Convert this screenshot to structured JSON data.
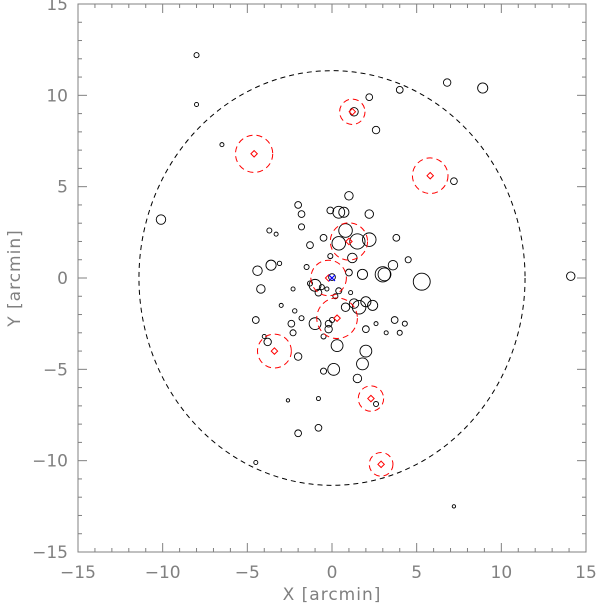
{
  "chart_data": {
    "type": "scatter",
    "xlabel": "X [arcmin]",
    "ylabel": "Y [arcmin]",
    "xlim": [
      -15,
      15
    ],
    "ylim": [
      -15,
      15
    ],
    "xticks_major": [
      -15,
      -10,
      -5,
      0,
      5,
      10,
      15
    ],
    "yticks_major": [
      -15,
      -10,
      -5,
      0,
      5,
      10,
      15
    ],
    "minor_tick_step": 1,
    "grid": false,
    "colors": {
      "frame": "#808080",
      "sources": "#000000",
      "highlight": "#ff0000",
      "center": "#0000ff"
    },
    "boundary_ellipse": {
      "center": [
        0,
        0
      ],
      "semi_x": 11.4,
      "semi_y": 11.35,
      "style": "dashed",
      "color": "#000000"
    },
    "sources": [
      {
        "x": -8.0,
        "y": 12.2,
        "r": 0.15
      },
      {
        "x": -8.0,
        "y": 9.5,
        "r": 0.12
      },
      {
        "x": -6.5,
        "y": 7.3,
        "r": 0.12
      },
      {
        "x": 6.8,
        "y": 10.7,
        "r": 0.22
      },
      {
        "x": 8.9,
        "y": 10.4,
        "r": 0.3
      },
      {
        "x": 4.0,
        "y": 10.3,
        "r": 0.2
      },
      {
        "x": 2.2,
        "y": 9.9,
        "r": 0.2
      },
      {
        "x": 1.3,
        "y": 9.1,
        "r": 0.25
      },
      {
        "x": 2.6,
        "y": 8.1,
        "r": 0.22
      },
      {
        "x": -10.1,
        "y": 3.2,
        "r": 0.28
      },
      {
        "x": 14.1,
        "y": 0.1,
        "r": 0.25
      },
      {
        "x": 7.2,
        "y": 5.3,
        "r": 0.2
      },
      {
        "x": 1.0,
        "y": 4.5,
        "r": 0.25
      },
      {
        "x": 0.4,
        "y": 3.6,
        "r": 0.35
      },
      {
        "x": 0.7,
        "y": 3.6,
        "r": 0.3
      },
      {
        "x": -0.1,
        "y": 3.7,
        "r": 0.2
      },
      {
        "x": 2.2,
        "y": 3.5,
        "r": 0.25
      },
      {
        "x": -2.0,
        "y": 4.0,
        "r": 0.2
      },
      {
        "x": -1.8,
        "y": 3.5,
        "r": 0.2
      },
      {
        "x": -1.8,
        "y": 2.8,
        "r": 0.18
      },
      {
        "x": 0.8,
        "y": 2.6,
        "r": 0.4
      },
      {
        "x": -0.5,
        "y": 2.2,
        "r": 0.2
      },
      {
        "x": 0.4,
        "y": 1.9,
        "r": 0.4
      },
      {
        "x": 1.5,
        "y": 2.0,
        "r": 0.45
      },
      {
        "x": 2.2,
        "y": 2.1,
        "r": 0.4
      },
      {
        "x": 3.8,
        "y": 2.2,
        "r": 0.2
      },
      {
        "x": -3.7,
        "y": 2.6,
        "r": 0.15
      },
      {
        "x": -3.3,
        "y": 2.4,
        "r": 0.12
      },
      {
        "x": -1.3,
        "y": 1.8,
        "r": 0.2
      },
      {
        "x": -3.6,
        "y": 0.7,
        "r": 0.3
      },
      {
        "x": -4.4,
        "y": 0.4,
        "r": 0.28
      },
      {
        "x": -3.1,
        "y": 0.8,
        "r": 0.13
      },
      {
        "x": -1.5,
        "y": 0.6,
        "r": 0.15
      },
      {
        "x": -0.1,
        "y": 1.2,
        "r": 0.15
      },
      {
        "x": 1.2,
        "y": 1.1,
        "r": 0.28
      },
      {
        "x": 1.8,
        "y": 0.2,
        "r": 0.3
      },
      {
        "x": 3.0,
        "y": 0.2,
        "r": 0.45
      },
      {
        "x": 3.1,
        "y": 0.2,
        "r": 0.38
      },
      {
        "x": 3.6,
        "y": 0.7,
        "r": 0.28
      },
      {
        "x": 4.5,
        "y": 1.0,
        "r": 0.18
      },
      {
        "x": 5.3,
        "y": -0.2,
        "r": 0.5
      },
      {
        "x": 1.0,
        "y": 0.3,
        "r": 0.2
      },
      {
        "x": -4.2,
        "y": -0.6,
        "r": 0.25
      },
      {
        "x": -2.3,
        "y": -0.6,
        "r": 0.12
      },
      {
        "x": -1.3,
        "y": -0.3,
        "r": 0.15
      },
      {
        "x": -1.0,
        "y": -0.4,
        "r": 0.35
      },
      {
        "x": -0.6,
        "y": -0.5,
        "r": 0.15
      },
      {
        "x": -0.3,
        "y": -0.6,
        "r": 0.12
      },
      {
        "x": -0.8,
        "y": -0.8,
        "r": 0.2
      },
      {
        "x": 0.4,
        "y": -0.7,
        "r": 0.18
      },
      {
        "x": 0.2,
        "y": -1.0,
        "r": 0.15
      },
      {
        "x": 1.1,
        "y": -0.8,
        "r": 0.12
      },
      {
        "x": 0.8,
        "y": -1.6,
        "r": 0.25
      },
      {
        "x": 1.3,
        "y": -1.4,
        "r": 0.28
      },
      {
        "x": 1.6,
        "y": -1.6,
        "r": 0.4
      },
      {
        "x": 2.0,
        "y": -1.3,
        "r": 0.3
      },
      {
        "x": 2.4,
        "y": -1.5,
        "r": 0.3
      },
      {
        "x": -3.0,
        "y": -1.5,
        "r": 0.12
      },
      {
        "x": -2.2,
        "y": -1.8,
        "r": 0.13
      },
      {
        "x": -1.8,
        "y": -2.2,
        "r": 0.15
      },
      {
        "x": -0.2,
        "y": -2.5,
        "r": 0.2
      },
      {
        "x": 0.0,
        "y": -2.3,
        "r": 0.15
      },
      {
        "x": -4.5,
        "y": -2.3,
        "r": 0.2
      },
      {
        "x": -2.4,
        "y": -2.5,
        "r": 0.2
      },
      {
        "x": -1.0,
        "y": -2.5,
        "r": 0.35
      },
      {
        "x": 2.6,
        "y": -2.5,
        "r": 0.12
      },
      {
        "x": 3.7,
        "y": -2.3,
        "r": 0.2
      },
      {
        "x": 4.3,
        "y": -2.5,
        "r": 0.15
      },
      {
        "x": -0.2,
        "y": -2.8,
        "r": 0.22
      },
      {
        "x": 2.0,
        "y": -2.8,
        "r": 0.2
      },
      {
        "x": -4.0,
        "y": -3.2,
        "r": 0.12
      },
      {
        "x": -2.3,
        "y": -3.0,
        "r": 0.18
      },
      {
        "x": -0.5,
        "y": -3.2,
        "r": 0.15
      },
      {
        "x": 0.3,
        "y": -3.7,
        "r": 0.35
      },
      {
        "x": 3.2,
        "y": -3.0,
        "r": 0.12
      },
      {
        "x": 4.0,
        "y": -3.0,
        "r": 0.15
      },
      {
        "x": -3.8,
        "y": -3.5,
        "r": 0.22
      },
      {
        "x": -2.0,
        "y": -4.3,
        "r": 0.22
      },
      {
        "x": 2.0,
        "y": -4.0,
        "r": 0.35
      },
      {
        "x": 1.8,
        "y": -4.7,
        "r": 0.35
      },
      {
        "x": 0.1,
        "y": -5.0,
        "r": 0.35
      },
      {
        "x": -0.5,
        "y": -5.1,
        "r": 0.18
      },
      {
        "x": 1.5,
        "y": -5.5,
        "r": 0.25
      },
      {
        "x": -2.6,
        "y": -6.7,
        "r": 0.1
      },
      {
        "x": -0.8,
        "y": -6.6,
        "r": 0.12
      },
      {
        "x": 2.6,
        "y": -6.9,
        "r": 0.15
      },
      {
        "x": -0.8,
        "y": -8.2,
        "r": 0.2
      },
      {
        "x": -2.0,
        "y": -8.5,
        "r": 0.2
      },
      {
        "x": 0.0,
        "y": 0.05,
        "r": 0.2
      },
      {
        "x": -4.5,
        "y": -10.1,
        "r": 0.12
      },
      {
        "x": 7.2,
        "y": -12.5,
        "r": 0.1
      }
    ],
    "highlighted": [
      {
        "x": 1.2,
        "y": 9.1,
        "r": 0.75
      },
      {
        "x": -4.6,
        "y": 6.8,
        "r": 1.1
      },
      {
        "x": 5.8,
        "y": 5.6,
        "r": 1.05
      },
      {
        "x": -0.2,
        "y": 0.0,
        "r": 1.05
      },
      {
        "x": 1.0,
        "y": 2.0,
        "r": 1.1
      },
      {
        "x": 0.3,
        "y": -2.2,
        "r": 1.2
      },
      {
        "x": -3.4,
        "y": -4.0,
        "r": 1.0
      },
      {
        "x": 2.3,
        "y": -6.6,
        "r": 0.75
      },
      {
        "x": 2.9,
        "y": -10.2,
        "r": 0.7
      }
    ]
  }
}
